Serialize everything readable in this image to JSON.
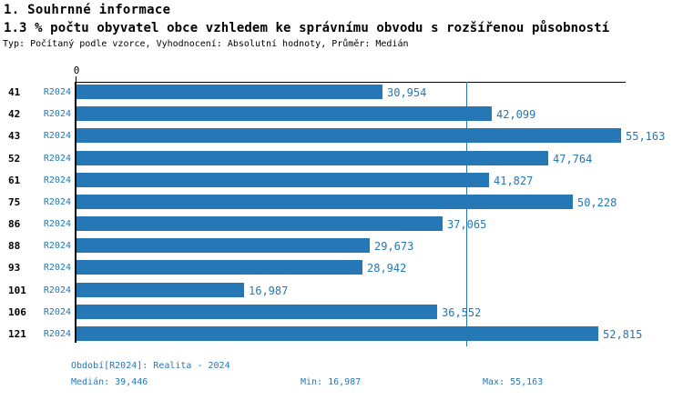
{
  "header": {
    "section_title": "1. Souhrnné informace",
    "indicator_title": "1.3 % počtu obyvatel obce vzhledem ke správnímu obvodu s rozšířenou působností",
    "meta": "Typ: Počítaný podle vzorce, Vyhodnocení: Absolutní hodnoty, Průměr: Medián"
  },
  "chart_data": {
    "type": "bar",
    "orientation": "horizontal",
    "title": "",
    "categories": [
      "41",
      "42",
      "43",
      "52",
      "61",
      "75",
      "86",
      "88",
      "93",
      "101",
      "106",
      "121"
    ],
    "series_label": "R2024",
    "values": [
      30954,
      42099,
      55163,
      47764,
      41827,
      50228,
      37065,
      29673,
      28942,
      16987,
      36552,
      52815
    ],
    "value_labels": [
      "30,954",
      "42,099",
      "55,163",
      "47,764",
      "41,827",
      "50,228",
      "37,065",
      "29,673",
      "28,942",
      "16,987",
      "36,552",
      "52,815"
    ],
    "xlim": [
      0,
      55163
    ],
    "x_zero_label": "0",
    "median": 39446,
    "grid": false,
    "legend_position": "none",
    "bar_color": "#2577B5",
    "median_line_color": "#2577B5",
    "text_color": "#2577B5"
  },
  "footer": {
    "period": "Období[R2024]: Realita - 2024",
    "median": "Medián: 39,446",
    "min": "Min: 16,987",
    "max": "Max: 55,163"
  }
}
